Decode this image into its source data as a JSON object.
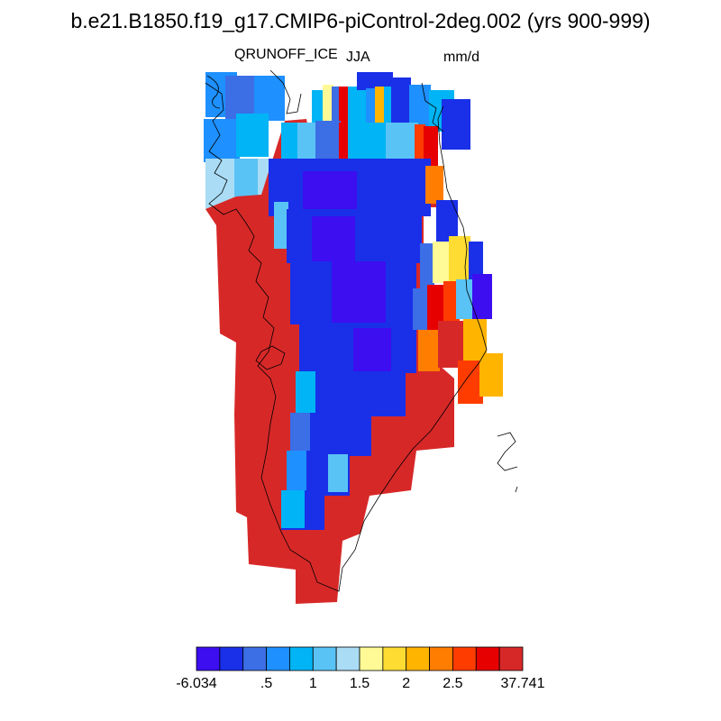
{
  "title": "b.e21.B1850.f19_g17.CMIP6-piControl-2deg.002 (yrs 900-999)",
  "variable": "QRUNOFF_ICE",
  "season": "JJA",
  "units": "mm/d",
  "colorbar": {
    "colors": [
      "#3c0ef0",
      "#1930e8",
      "#3c6ee6",
      "#1e90ff",
      "#00b4f5",
      "#5ac3f5",
      "#aadcf5",
      "#fffa96",
      "#ffdc32",
      "#ffb400",
      "#ff7d00",
      "#ff3c00",
      "#e60000",
      "#d72828"
    ],
    "tick_labels": [
      "-6.034",
      ".5",
      "1",
      "1.5",
      "2",
      "2.5",
      "37.741"
    ]
  },
  "map_legend": {
    "field": "grid-cell runoff values shown by color class",
    "colors": {
      "c0": "#3c0ef0",
      "c1": "#1930e8",
      "c2": "#3c6ee6",
      "c3": "#1e90ff",
      "c4": "#00b4f5",
      "c5": "#5ac3f5",
      "c6": "#aadcf5",
      "c7": "#fffa96",
      "c8": "#ffdc32",
      "c9": "#ffb400",
      "c10": "#ff7d00",
      "c11": "#ff3c00",
      "c12": "#e60000",
      "c13": "#d72828"
    }
  }
}
